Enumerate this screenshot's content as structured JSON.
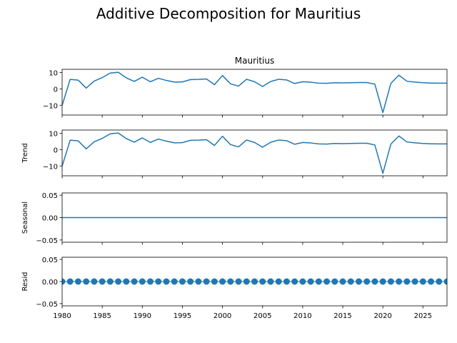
{
  "chart_data": {
    "type": "line",
    "title": "Additive Decomposition for Mauritius",
    "x": [
      1980,
      1981,
      1982,
      1983,
      1984,
      1985,
      1986,
      1987,
      1988,
      1989,
      1990,
      1991,
      1992,
      1993,
      1994,
      1995,
      1996,
      1997,
      1998,
      1999,
      2000,
      2001,
      2002,
      2003,
      2004,
      2005,
      2006,
      2007,
      2008,
      2009,
      2010,
      2011,
      2012,
      2013,
      2014,
      2015,
      2016,
      2017,
      2018,
      2019,
      2020,
      2021,
      2022,
      2023,
      2024,
      2025,
      2026,
      2027,
      2028
    ],
    "xlim": [
      1980,
      2028
    ],
    "xticks": [
      "1980",
      "1985",
      "1990",
      "1995",
      "2000",
      "2005",
      "2010",
      "2015",
      "2020",
      "2025"
    ],
    "series_color": "#1f77b4",
    "panels": [
      {
        "key": "observed",
        "title": "Mauritius",
        "ylabel": "",
        "kind": "line",
        "ylim": [
          -16,
          12
        ],
        "yticks": [
          "10",
          "0",
          "−10"
        ],
        "ytick_values": [
          10,
          0,
          -10
        ],
        "values": [
          -10.1,
          5.8,
          5.4,
          0.5,
          4.8,
          6.9,
          9.7,
          10.2,
          6.8,
          4.6,
          7.2,
          4.4,
          6.5,
          5.2,
          4.2,
          4.3,
          5.7,
          5.8,
          6.1,
          2.6,
          8.2,
          3.1,
          1.7,
          5.9,
          4.4,
          1.5,
          4.5,
          5.9,
          5.5,
          3.3,
          4.4,
          4.1,
          3.5,
          3.4,
          3.8,
          3.7,
          3.8,
          3.9,
          3.9,
          2.9,
          -14.5,
          3.4,
          8.4,
          4.7,
          4.2,
          3.8,
          3.6,
          3.5,
          3.5
        ]
      },
      {
        "key": "trend",
        "title": "",
        "ylabel": "Trend",
        "kind": "line",
        "ylim": [
          -16,
          12
        ],
        "yticks": [
          "10",
          "0",
          "−10"
        ],
        "ytick_values": [
          10,
          0,
          -10
        ],
        "values": [
          -10.1,
          5.8,
          5.4,
          0.5,
          4.8,
          6.9,
          9.7,
          10.2,
          6.8,
          4.6,
          7.2,
          4.4,
          6.5,
          5.2,
          4.2,
          4.3,
          5.7,
          5.8,
          6.1,
          2.6,
          8.2,
          3.1,
          1.7,
          5.9,
          4.4,
          1.5,
          4.5,
          5.9,
          5.5,
          3.3,
          4.4,
          4.1,
          3.5,
          3.4,
          3.8,
          3.7,
          3.8,
          3.9,
          3.9,
          2.9,
          -14.5,
          3.4,
          8.4,
          4.7,
          4.2,
          3.8,
          3.6,
          3.5,
          3.5
        ]
      },
      {
        "key": "seasonal",
        "title": "",
        "ylabel": "Seasonal",
        "kind": "line",
        "ylim": [
          -0.055,
          0.055
        ],
        "yticks": [
          "0.05",
          "0.00",
          "−0.05"
        ],
        "ytick_values": [
          0.05,
          0,
          -0.05
        ],
        "values": [
          0,
          0,
          0,
          0,
          0,
          0,
          0,
          0,
          0,
          0,
          0,
          0,
          0,
          0,
          0,
          0,
          0,
          0,
          0,
          0,
          0,
          0,
          0,
          0,
          0,
          0,
          0,
          0,
          0,
          0,
          0,
          0,
          0,
          0,
          0,
          0,
          0,
          0,
          0,
          0,
          0,
          0,
          0,
          0,
          0,
          0,
          0,
          0,
          0
        ]
      },
      {
        "key": "resid",
        "title": "",
        "ylabel": "Resid",
        "kind": "scatter",
        "ylim": [
          -0.055,
          0.055
        ],
        "yticks": [
          "0.05",
          "0.00",
          "−0.05"
        ],
        "ytick_values": [
          0.05,
          0,
          -0.05
        ],
        "values": [
          0,
          0,
          0,
          0,
          0,
          0,
          0,
          0,
          0,
          0,
          0,
          0,
          0,
          0,
          0,
          0,
          0,
          0,
          0,
          0,
          0,
          0,
          0,
          0,
          0,
          0,
          0,
          0,
          0,
          0,
          0,
          0,
          0,
          0,
          0,
          0,
          0,
          0,
          0,
          0,
          0,
          0,
          0,
          0,
          0,
          0,
          0,
          0,
          0
        ]
      }
    ]
  }
}
